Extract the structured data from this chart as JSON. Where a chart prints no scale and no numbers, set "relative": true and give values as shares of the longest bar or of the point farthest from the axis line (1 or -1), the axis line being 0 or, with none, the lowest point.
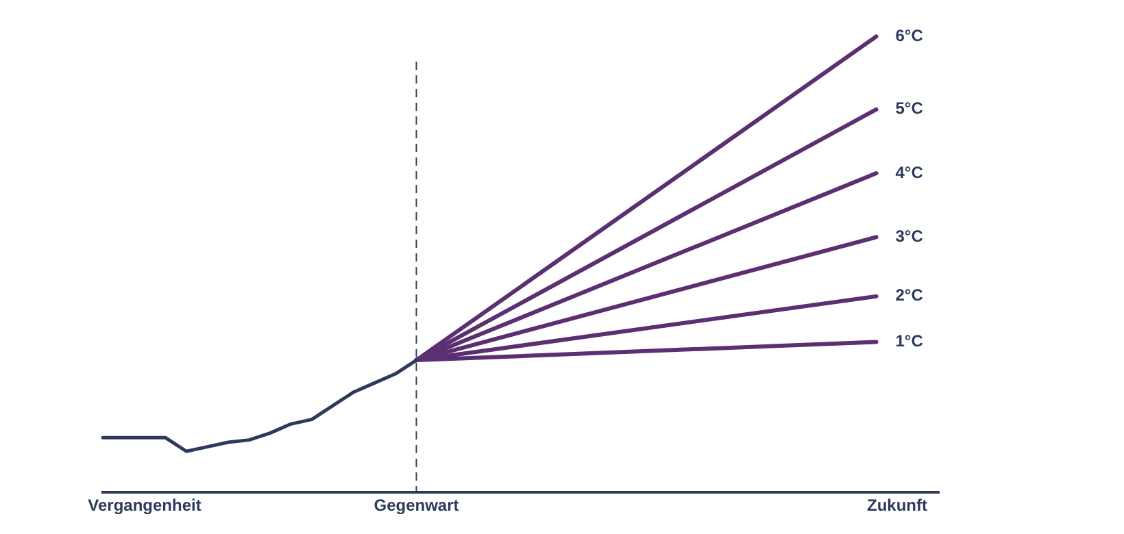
{
  "chart_data": {
    "type": "line",
    "relative": true,
    "categories": [
      null,
      null,
      "Vergangenheit",
      null,
      null,
      null,
      null,
      null,
      null,
      null,
      null,
      null,
      null,
      null,
      null,
      "Gegenwart",
      null,
      null,
      null,
      null,
      null,
      null,
      null,
      null,
      null,
      null,
      null,
      null,
      null,
      null,
      null,
      null,
      null,
      null,
      null,
      null,
      null,
      null,
      "Zukunft",
      null,
      null
    ],
    "series": [
      {
        "color": "#2e3a5c",
        "values": [
          0.12,
          0.12,
          0.12,
          0.12,
          0.09,
          0.1,
          0.11,
          0.115,
          0.13,
          0.15,
          0.16,
          0.19,
          0.22,
          0.24,
          0.26,
          0.29,
          null,
          null,
          null,
          null,
          null,
          null,
          null,
          null,
          null,
          null,
          null,
          null,
          null,
          null,
          null,
          null,
          null,
          null,
          null,
          null,
          null,
          null,
          null,
          null,
          null
        ]
      },
      {
        "name": "1°C",
        "color": "#5c2f73",
        "values": [
          null,
          null,
          null,
          null,
          null,
          null,
          null,
          null,
          null,
          null,
          null,
          null,
          null,
          null,
          null,
          0.29,
          null,
          null,
          null,
          null,
          null,
          null,
          null,
          null,
          null,
          null,
          null,
          null,
          null,
          null,
          null,
          null,
          null,
          null,
          null,
          null,
          null,
          0.33,
          null,
          null,
          null
        ]
      },
      {
        "name": "2°C",
        "color": "#5c2f73",
        "values": [
          null,
          null,
          null,
          null,
          null,
          null,
          null,
          null,
          null,
          null,
          null,
          null,
          null,
          null,
          null,
          0.29,
          null,
          null,
          null,
          null,
          null,
          null,
          null,
          null,
          null,
          null,
          null,
          null,
          null,
          null,
          null,
          null,
          null,
          null,
          null,
          null,
          null,
          0.43,
          null,
          null,
          null
        ]
      },
      {
        "name": "3°C",
        "color": "#5c2f73",
        "values": [
          null,
          null,
          null,
          null,
          null,
          null,
          null,
          null,
          null,
          null,
          null,
          null,
          null,
          null,
          null,
          0.29,
          null,
          null,
          null,
          null,
          null,
          null,
          null,
          null,
          null,
          null,
          null,
          null,
          null,
          null,
          null,
          null,
          null,
          null,
          null,
          null,
          null,
          0.56,
          null,
          null,
          null
        ]
      },
      {
        "name": "4°C",
        "color": "#5c2f73",
        "values": [
          null,
          null,
          null,
          null,
          null,
          null,
          null,
          null,
          null,
          null,
          null,
          null,
          null,
          null,
          null,
          0.29,
          null,
          null,
          null,
          null,
          null,
          null,
          null,
          null,
          null,
          null,
          null,
          null,
          null,
          null,
          null,
          null,
          null,
          null,
          null,
          null,
          null,
          0.7,
          null,
          null,
          null
        ]
      },
      {
        "name": "5°C",
        "color": "#5c2f73",
        "values": [
          null,
          null,
          null,
          null,
          null,
          null,
          null,
          null,
          null,
          null,
          null,
          null,
          null,
          null,
          null,
          0.29,
          null,
          null,
          null,
          null,
          null,
          null,
          null,
          null,
          null,
          null,
          null,
          null,
          null,
          null,
          null,
          null,
          null,
          null,
          null,
          null,
          null,
          0.84,
          null,
          null,
          null
        ]
      },
      {
        "name": "6°C",
        "color": "#5c2f73",
        "values": [
          null,
          null,
          null,
          null,
          null,
          null,
          null,
          null,
          null,
          null,
          null,
          null,
          null,
          null,
          null,
          0.29,
          null,
          null,
          null,
          null,
          null,
          null,
          null,
          null,
          null,
          null,
          null,
          null,
          null,
          null,
          null,
          null,
          null,
          null,
          null,
          null,
          null,
          1,
          null,
          null,
          null
        ]
      }
    ],
    "ref_lines": [
      {
        "axis": "x",
        "value": "Gegenwart",
        "line_style": "dashed",
        "color": "#2e3a5c"
      }
    ],
    "legend": false,
    "grid": false,
    "marker": "none",
    "line_style": "solid"
  }
}
